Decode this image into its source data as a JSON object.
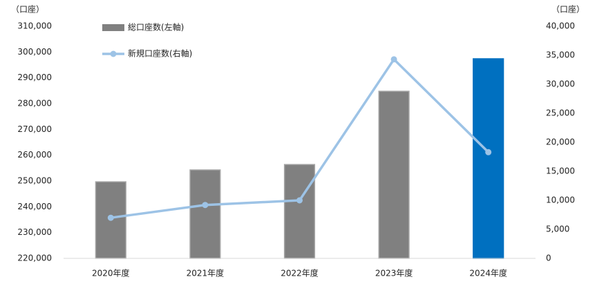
{
  "chart_data": {
    "type": "bar",
    "y_unit": "（口座）",
    "y2_unit": "（口座）",
    "categories": [
      "2020年度",
      "2021年度",
      "2022年度",
      "2023年度",
      "2024年度"
    ],
    "series": [
      {
        "name": "総口座数(左軸)",
        "type": "bar",
        "color": "#808080",
        "colors": [
          "#808080",
          "#808080",
          "#808080",
          "#808080",
          "#0070c0"
        ],
        "values": [
          249700,
          254300,
          256400,
          284800,
          297400
        ]
      },
      {
        "name": "新規口座数(右軸)",
        "type": "line",
        "axis": "y2",
        "color": "#9dc3e6",
        "values": [
          7000,
          9200,
          10000,
          34300,
          18300
        ]
      }
    ],
    "ylim": [
      220000,
      310000
    ],
    "yticks": [
      {
        "value": 220000,
        "label": "220,000"
      },
      {
        "value": 230000,
        "label": "230,000"
      },
      {
        "value": 240000,
        "label": "240,000"
      },
      {
        "value": 250000,
        "label": "250,000"
      },
      {
        "value": 260000,
        "label": "260,000"
      },
      {
        "value": 270000,
        "label": "270,000"
      },
      {
        "value": 280000,
        "label": "280,000"
      },
      {
        "value": 290000,
        "label": "290,000"
      },
      {
        "value": 300000,
        "label": "300,000"
      },
      {
        "value": 310000,
        "label": "310,000"
      }
    ],
    "y2lim": [
      0,
      40000
    ],
    "y2ticks": [
      0,
      {
        "value": 5000,
        "label": "5,000"
      },
      {
        "value": 10000,
        "label": "10,000"
      },
      {
        "value": 15000,
        "label": "15,000"
      },
      {
        "value": 20000,
        "label": "20,000"
      },
      {
        "value": 25000,
        "label": "25,000"
      },
      {
        "value": 30000,
        "label": "30,000"
      },
      {
        "value": 35000,
        "label": "35,000"
      },
      {
        "value": 40000,
        "label": "40,000"
      }
    ],
    "grid": false,
    "legend": "top-left"
  }
}
